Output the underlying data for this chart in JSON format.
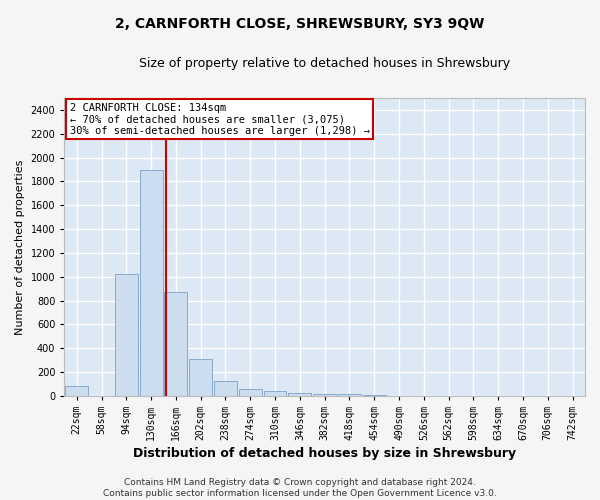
{
  "title": "2, CARNFORTH CLOSE, SHREWSBURY, SY3 9QW",
  "subtitle": "Size of property relative to detached houses in Shrewsbury",
  "xlabel": "Distribution of detached houses by size in Shrewsbury",
  "ylabel": "Number of detached properties",
  "bar_color": "#ccddf0",
  "bar_edge_color": "#88aacc",
  "categories": [
    "22sqm",
    "58sqm",
    "94sqm",
    "130sqm",
    "166sqm",
    "202sqm",
    "238sqm",
    "274sqm",
    "310sqm",
    "346sqm",
    "382sqm",
    "418sqm",
    "454sqm",
    "490sqm",
    "526sqm",
    "562sqm",
    "598sqm",
    "634sqm",
    "670sqm",
    "706sqm",
    "742sqm"
  ],
  "values": [
    80,
    0,
    1025,
    1900,
    870,
    310,
    120,
    55,
    40,
    22,
    18,
    12,
    3,
    0,
    0,
    0,
    0,
    0,
    0,
    0,
    0
  ],
  "ylim": [
    0,
    2500
  ],
  "yticks": [
    0,
    200,
    400,
    600,
    800,
    1000,
    1200,
    1400,
    1600,
    1800,
    2000,
    2200,
    2400
  ],
  "vline_x_index": 3.61,
  "vline_color": "#cc0000",
  "annotation_line1": "2 CARNFORTH CLOSE: 134sqm",
  "annotation_line2": "← 70% of detached houses are smaller (3,075)",
  "annotation_line3": "30% of semi-detached houses are larger (1,298) →",
  "annotation_box_color": "#ffffff",
  "annotation_box_edge": "#cc0000",
  "footer": "Contains HM Land Registry data © Crown copyright and database right 2024.\nContains public sector information licensed under the Open Government Licence v3.0.",
  "fig_bg_color": "#f5f5f5",
  "plot_bg_color": "#dde8f5",
  "grid_color": "#ffffff",
  "title_fontsize": 10,
  "subtitle_fontsize": 9,
  "xlabel_fontsize": 9,
  "ylabel_fontsize": 8,
  "tick_fontsize": 7,
  "annot_fontsize": 7.5,
  "footer_fontsize": 6.5
}
